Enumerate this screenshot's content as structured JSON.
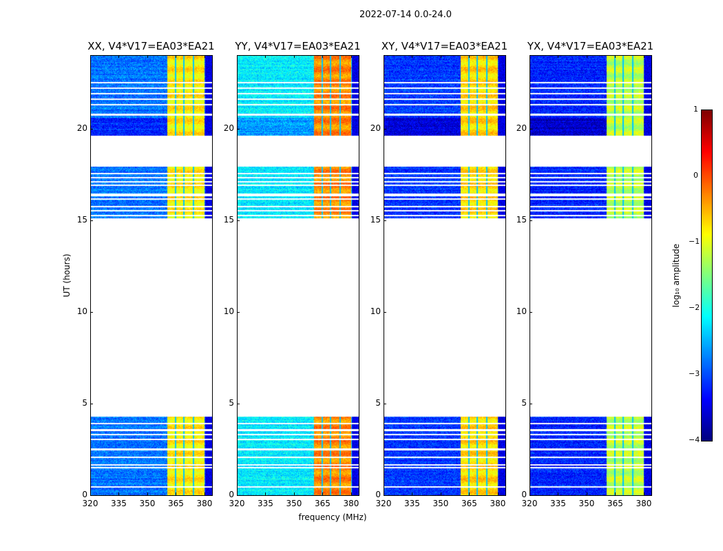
{
  "chart_data": {
    "type": "heatmap",
    "suptitle": "2022-07-14 0.0-24.0",
    "xlabel": "frequency (MHz)",
    "ylabel": "UT (hours)",
    "xlim": [
      320,
      384
    ],
    "ylim": [
      0,
      24
    ],
    "xticks": [
      "320",
      "335",
      "350",
      "365",
      "380"
    ],
    "xtick_values": [
      320,
      335,
      350,
      365,
      380
    ],
    "yticks": [
      "0",
      "5",
      "10",
      "15",
      "20"
    ],
    "ytick_values": [
      0,
      5,
      10,
      15,
      20
    ],
    "time_segments_hours": [
      [
        0,
        4.3
      ],
      [
        15.1,
        16.3
      ],
      [
        16.45,
        17.9
      ],
      [
        19.6,
        24
      ]
    ],
    "flagged_rows_hours": [
      0.45,
      1.5,
      1.65,
      2.05,
      2.5,
      3.05,
      3.3,
      3.55,
      3.9,
      15.25,
      15.5,
      15.75,
      16.15,
      16.9,
      17.1,
      17.3,
      17.55,
      20.75,
      21.3,
      21.6,
      21.9,
      22.2,
      22.5
    ],
    "rfi_band_mhz": [
      360.5,
      380
    ],
    "band_gaps_mhz": [
      364.8,
      369.2,
      374.2
    ],
    "panels": [
      {
        "title": "XX, V4*V17=EA03*EA21",
        "background_log10": -2.8,
        "band_log10": -0.8
      },
      {
        "title": "YY, V4*V17=EA03*EA21",
        "background_log10": -2.2,
        "band_log10": -0.3
      },
      {
        "title": "XY, V4*V17=EA03*EA21",
        "background_log10": -3.1,
        "band_log10": -0.7
      },
      {
        "title": "YX, V4*V17=EA03*EA21",
        "background_log10": -3.2,
        "band_log10": -1.2
      }
    ],
    "colorbar": {
      "label": "log₁₀ amplitude",
      "range": [
        -4,
        1
      ],
      "ticks": [
        "1",
        "0",
        "−1",
        "−2",
        "−3",
        "−4"
      ],
      "tick_values": [
        1,
        0,
        -1,
        -2,
        -3,
        -4
      ],
      "colormap": "jet"
    }
  }
}
